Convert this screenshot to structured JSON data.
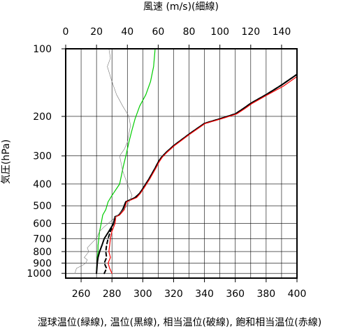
{
  "chart_data": {
    "type": "line",
    "title_top": "風速 (m/s)(細線)",
    "xlabel_bottom": "湿球温位(緑線), 温位(黒線), 相当温位(破線), 飽和相当温位(赤線)",
    "ylabel": "気圧(hPa)",
    "pressure_axis": {
      "scale": "log",
      "range": [
        1050,
        100
      ],
      "ticks": [
        100,
        200,
        300,
        400,
        500,
        600,
        700,
        800,
        900,
        1000
      ],
      "tick_labels": [
        "100",
        "200",
        "300",
        "400",
        "500",
        "600",
        "700",
        "800",
        "900",
        "1000"
      ]
    },
    "temperature_axis": {
      "range": [
        250,
        400
      ],
      "ticks": [
        260,
        280,
        300,
        320,
        340,
        360,
        380,
        400
      ],
      "tick_labels": [
        "260",
        "280",
        "300",
        "320",
        "340",
        "360",
        "380",
        "400"
      ]
    },
    "wind_axis": {
      "range": [
        0,
        150
      ],
      "ticks": [
        0,
        20,
        40,
        60,
        80,
        100,
        120,
        140
      ],
      "tick_labels": [
        "0",
        "20",
        "40",
        "60",
        "80",
        "100",
        "120",
        "140"
      ]
    },
    "grid": true,
    "series": [
      {
        "key": "wet_bulb",
        "color": "#00cc00",
        "style": "solid",
        "axis": "temperature",
        "points": [
          [
            270.0,
            1000
          ],
          [
            270.0,
            950
          ],
          [
            270.5,
            900
          ],
          [
            270.5,
            850
          ],
          [
            271.0,
            800
          ],
          [
            271.0,
            750
          ],
          [
            271.5,
            700
          ],
          [
            272.0,
            650
          ],
          [
            273.0,
            600
          ],
          [
            274.0,
            550
          ],
          [
            276.0,
            520
          ],
          [
            277.5,
            480
          ],
          [
            280.0,
            450
          ],
          [
            285.0,
            400
          ],
          [
            287.5,
            330
          ],
          [
            289.0,
            300
          ],
          [
            291.0,
            260
          ],
          [
            293.0,
            230
          ],
          [
            295.0,
            205
          ],
          [
            298.0,
            180
          ],
          [
            302.0,
            160
          ],
          [
            305.0,
            140
          ],
          [
            307.0,
            120
          ],
          [
            308.0,
            100
          ]
        ]
      },
      {
        "key": "theta",
        "color": "#000000",
        "style": "solid",
        "axis": "temperature",
        "points": [
          [
            270.0,
            1000
          ],
          [
            270.5,
            900
          ],
          [
            271.0,
            850
          ],
          [
            272.0,
            800
          ],
          [
            273.5,
            750
          ],
          [
            275.0,
            700
          ],
          [
            278.0,
            650
          ],
          [
            281.0,
            600
          ],
          [
            282.0,
            560
          ],
          [
            284.5,
            550
          ],
          [
            287.0,
            520
          ],
          [
            289.0,
            480
          ],
          [
            295.0,
            460
          ],
          [
            298.0,
            440
          ],
          [
            300.0,
            420
          ],
          [
            304.0,
            380
          ],
          [
            308.0,
            340
          ],
          [
            310.0,
            320
          ],
          [
            312.0,
            305
          ],
          [
            315.0,
            290
          ],
          [
            320.0,
            270
          ],
          [
            330.0,
            240
          ],
          [
            340.0,
            215
          ],
          [
            350.0,
            205
          ],
          [
            360.0,
            195
          ],
          [
            365.0,
            185
          ],
          [
            370.0,
            175
          ],
          [
            380.0,
            160
          ],
          [
            390.0,
            145
          ],
          [
            400.0,
            130
          ]
        ]
      },
      {
        "key": "theta_e",
        "color": "#000000",
        "style": "dashed",
        "axis": "temperature",
        "points": [
          [
            275.0,
            1000
          ],
          [
            276.5,
            950
          ],
          [
            275.0,
            900
          ],
          [
            276.5,
            850
          ],
          [
            276.0,
            800
          ],
          [
            276.5,
            750
          ],
          [
            277.5,
            700
          ],
          [
            279.0,
            650
          ],
          [
            281.0,
            600
          ],
          [
            282.0,
            560
          ],
          [
            284.5,
            550
          ],
          [
            287.0,
            520
          ],
          [
            289.0,
            480
          ],
          [
            295.0,
            460
          ],
          [
            298.0,
            440
          ],
          [
            300.0,
            420
          ],
          [
            304.0,
            380
          ],
          [
            308.0,
            340
          ],
          [
            310.0,
            320
          ],
          [
            312.0,
            305
          ],
          [
            315.0,
            290
          ],
          [
            320.0,
            270
          ],
          [
            330.0,
            240
          ],
          [
            340.0,
            215
          ],
          [
            350.0,
            205
          ],
          [
            360.0,
            195
          ],
          [
            365.0,
            185
          ],
          [
            370.0,
            175
          ],
          [
            380.0,
            160
          ],
          [
            390.0,
            145
          ],
          [
            400.0,
            130
          ]
        ]
      },
      {
        "key": "theta_es",
        "color": "#ff0000",
        "style": "solid",
        "axis": "temperature",
        "points": [
          [
            280.0,
            1000
          ],
          [
            278.5,
            950
          ],
          [
            277.5,
            900
          ],
          [
            279.0,
            850
          ],
          [
            278.0,
            800
          ],
          [
            278.5,
            750
          ],
          [
            279.0,
            700
          ],
          [
            280.0,
            650
          ],
          [
            282.0,
            600
          ],
          [
            282.5,
            560
          ],
          [
            285.0,
            550
          ],
          [
            288.0,
            520
          ],
          [
            289.5,
            480
          ],
          [
            296.0,
            460
          ],
          [
            298.5,
            440
          ],
          [
            300.5,
            420
          ],
          [
            304.5,
            380
          ],
          [
            308.5,
            340
          ],
          [
            310.5,
            320
          ],
          [
            312.5,
            305
          ],
          [
            315.5,
            290
          ],
          [
            320.5,
            270
          ],
          [
            330.5,
            240
          ],
          [
            340.5,
            215
          ],
          [
            351.0,
            205
          ],
          [
            361.0,
            195
          ],
          [
            366.0,
            185
          ],
          [
            371.0,
            175
          ],
          [
            381.0,
            160
          ],
          [
            391.0,
            147
          ],
          [
            400.0,
            133
          ]
        ]
      },
      {
        "key": "wind",
        "color": "#777777",
        "style": "solid",
        "axis": "wind",
        "width": 0.6,
        "points": [
          [
            6,
            1000
          ],
          [
            7,
            950
          ],
          [
            11,
            920
          ],
          [
            13,
            900
          ],
          [
            14,
            870
          ],
          [
            12,
            850
          ],
          [
            15,
            800
          ],
          [
            14,
            770
          ],
          [
            18,
            720
          ],
          [
            20,
            700
          ],
          [
            22,
            650
          ],
          [
            25,
            620
          ],
          [
            30,
            580
          ],
          [
            35,
            540
          ],
          [
            40,
            500
          ],
          [
            43,
            450
          ],
          [
            40,
            400
          ],
          [
            37,
            350
          ],
          [
            35,
            300
          ],
          [
            38,
            280
          ],
          [
            40,
            260
          ],
          [
            42,
            220
          ],
          [
            41,
            200
          ],
          [
            37,
            180
          ],
          [
            33,
            160
          ],
          [
            30,
            140
          ],
          [
            27,
            120
          ],
          [
            29,
            110
          ],
          [
            28,
            100
          ]
        ]
      }
    ]
  }
}
